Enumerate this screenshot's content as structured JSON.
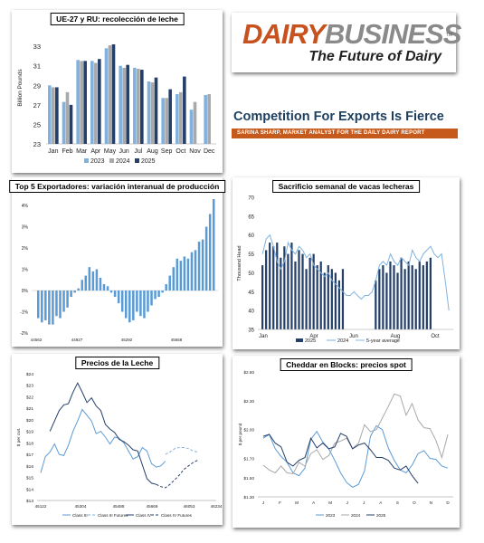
{
  "logo": {
    "part1": "DAIRY",
    "part2": "BUSINESS",
    "tagline": "The Future of Dairy",
    "tm": "TM"
  },
  "headline": {
    "title": "Competition For Exports Is Fierce",
    "subtitle": "SARINA SHARP, MARKET ANALYST FOR THE DAILY DAIRY REPORT"
  },
  "colors": {
    "c2023": "#7fb2df",
    "c2024": "#a9a9a9",
    "c2025": "#243f6a",
    "c5yr": "#7fb2df",
    "cTop5": "#5b9bd5",
    "brand_orange": "#c8521e",
    "brand_gray": "#8a8a8a",
    "headline_blue": "#1d3f5f",
    "bar_orange": "#c55a1c"
  },
  "chart_data": [
    {
      "id": "eu_uk_milk",
      "type": "bar",
      "title": "UE-27 y RU: recolección de leche",
      "ylabel": "Billion Pounds",
      "categories": [
        "Jan",
        "Feb",
        "Mar",
        "Apr",
        "May",
        "Jun",
        "Jul",
        "Aug",
        "Sep",
        "Oct",
        "Nov",
        "Dec"
      ],
      "ylim": [
        23,
        34.5
      ],
      "yticks": [
        "23",
        "25",
        "27",
        "29",
        "31",
        "33"
      ],
      "series": [
        {
          "name": "2023",
          "values": [
            29.0,
            27.3,
            31.6,
            31.5,
            32.8,
            31.0,
            30.8,
            29.4,
            27.7,
            28.1,
            26.5,
            28.0
          ]
        },
        {
          "name": "2024",
          "values": [
            28.8,
            28.3,
            31.5,
            31.3,
            33.1,
            30.8,
            30.7,
            29.3,
            27.7,
            28.3,
            27.3,
            28.1
          ]
        },
        {
          "name": "2025",
          "values": [
            28.8,
            27.0,
            31.5,
            31.7,
            33.2,
            31.1,
            30.6,
            29.8,
            28.6,
            29.9,
            null,
            null
          ]
        }
      ]
    },
    {
      "id": "top5_exporters",
      "type": "bar",
      "title": "Top 5 Exportadores: variación interanual de producción",
      "yticks": [
        "4%",
        "3%",
        "2%",
        "1%",
        "0%",
        "-1%",
        "-2%"
      ],
      "ylim": [
        -2,
        4.3
      ],
      "xticks": [
        "44562",
        "44927",
        "45292",
        "45658"
      ],
      "values": [
        -1.3,
        -1.5,
        -1.4,
        -1.6,
        -1.6,
        -1.2,
        -1.3,
        -1.0,
        -0.8,
        -0.3,
        -0.1,
        0.1,
        0.5,
        0.7,
        1.1,
        0.9,
        1.0,
        0.6,
        0.3,
        0.2,
        -0.1,
        -0.3,
        -0.6,
        -1.0,
        -1.3,
        -1.5,
        -1.4,
        -1.0,
        -1.2,
        -1.3,
        -1.0,
        -0.7,
        -0.4,
        -0.3,
        -0.1,
        0.3,
        0.7,
        1.1,
        1.5,
        1.4,
        1.6,
        1.5,
        1.8,
        1.9,
        2.3,
        2.4,
        3.0,
        3.6,
        4.3
      ]
    },
    {
      "id": "dairy_cow_slaughter",
      "type": "bar",
      "title": "Sacrificio semanal de vacas lecheras",
      "ylabel": "Thousand Head",
      "ylim": [
        35,
        70
      ],
      "yticks": [
        "70",
        "65",
        "60",
        "55",
        "50",
        "45",
        "40",
        "35"
      ],
      "xticks": [
        "Jan",
        "Apr",
        "Jun",
        "Aug",
        "Oct"
      ],
      "series": [
        {
          "name": "2025",
          "type": "bar",
          "values": [
            52,
            56,
            58,
            57,
            58,
            54,
            57,
            55,
            58,
            53,
            56,
            55,
            51,
            54,
            55,
            52,
            53,
            50,
            52,
            51,
            50,
            48,
            51,
            null,
            null,
            null,
            null,
            null,
            null,
            null,
            null,
            48,
            51,
            52,
            50,
            53,
            52,
            50,
            54,
            51,
            53,
            52,
            51,
            53,
            52,
            53,
            54
          ]
        },
        {
          "name": "2024",
          "type": "line",
          "values": [
            55,
            59,
            60,
            57,
            53,
            51,
            53,
            58,
            56,
            55,
            57,
            56,
            54,
            55,
            52,
            51,
            50,
            49,
            50,
            48,
            47,
            46,
            45,
            44,
            44,
            45,
            44,
            43,
            44,
            44,
            45,
            48,
            52,
            53,
            52,
            55,
            53,
            52,
            54,
            53,
            52,
            56,
            54,
            53,
            55,
            56,
            57,
            55,
            54,
            55,
            48,
            40
          ]
        },
        {
          "name": "5-year average",
          "type": "line",
          "values": [
            62,
            60,
            61,
            60,
            59,
            60,
            58,
            57,
            56,
            55,
            54,
            53,
            52,
            51,
            50,
            50,
            49,
            48,
            47,
            46,
            46,
            45,
            45,
            46,
            46,
            47,
            48,
            48,
            49,
            50,
            50,
            51,
            52,
            53,
            54,
            53,
            54,
            55,
            54,
            55,
            54,
            56,
            55,
            54,
            55,
            56,
            55,
            54,
            55,
            56,
            53,
            50
          ]
        }
      ]
    },
    {
      "id": "milk_prices",
      "type": "line",
      "title": "Precios de la Leche",
      "ylabel": "$ per cwt.",
      "ylim": [
        13,
        24
      ],
      "yticks": [
        "$24",
        "$23",
        "$22",
        "$21",
        "$20",
        "$19",
        "$18",
        "$17",
        "$16",
        "$15",
        "$14",
        "$13"
      ],
      "xticks": [
        "45122",
        "45304",
        "45488",
        "45669",
        "46053",
        "46234"
      ],
      "series": [
        {
          "name": "Class III",
          "values": [
            15.4,
            16.8,
            17.2,
            17.9,
            17.0,
            16.9,
            17.8,
            19.0,
            19.9,
            20.9,
            20.4,
            19.9,
            18.8,
            19.0,
            18.5,
            17.9,
            18.5,
            18.4,
            18.0,
            17.3,
            16.6,
            16.8,
            17.6,
            17.3,
            16.2,
            15.9,
            16.0,
            16.4
          ]
        },
        {
          "name": "Class III Futures",
          "values": [
            17.0,
            17.2,
            17.5,
            17.6,
            17.6,
            17.5,
            17.3,
            17.2
          ]
        },
        {
          "name": "Class IV",
          "values": [
            19.0,
            19.9,
            20.8,
            21.3,
            21.4,
            22.4,
            23.2,
            22.4,
            21.5,
            21.9,
            21.2,
            20.8,
            19.6,
            19.2,
            18.9,
            18.3,
            18.1,
            17.8,
            17.4,
            17.3,
            16.1,
            14.9,
            14.5,
            14.4
          ]
        },
        {
          "name": "Class IV Futures",
          "values": [
            14.4,
            14.2,
            14.1,
            14.4,
            14.8,
            15.2,
            15.7,
            16.0,
            16.3,
            16.5
          ]
        }
      ]
    },
    {
      "id": "cheddar_blocks",
      "type": "line",
      "title": "Cheddar en Blocks: precios spot",
      "ylabel": "$ per pound",
      "ylim": [
        1.3,
        2.6
      ],
      "yticks": [
        "$2.60",
        "$2.30",
        "$2.00",
        "$1.70",
        "$1.50",
        "$1.30"
      ],
      "xticks": [
        "J",
        "F",
        "M",
        "A",
        "M",
        "J",
        "J",
        "A",
        "S",
        "O",
        "N",
        "D"
      ],
      "series": [
        {
          "name": "2023",
          "values": [
            1.91,
            1.95,
            1.8,
            1.72,
            1.66,
            1.55,
            1.52,
            1.6,
            1.9,
            1.98,
            1.87,
            1.8,
            1.68,
            1.55,
            1.45,
            1.4,
            1.43,
            1.57,
            1.93,
            2.04,
            2.0,
            1.81,
            1.68,
            1.58,
            1.55,
            1.63,
            1.75,
            1.78,
            1.7,
            1.69,
            1.62,
            1.6
          ]
        },
        {
          "name": "2024",
          "values": [
            1.63,
            1.58,
            1.55,
            1.62,
            1.55,
            1.54,
            1.66,
            1.62,
            1.75,
            1.79,
            1.69,
            1.73,
            1.86,
            1.88,
            1.91,
            1.8,
            1.86,
            2.05,
            1.98,
            2.0,
            2.12,
            2.24,
            2.37,
            2.35,
            2.15,
            2.27,
            2.1,
            2.02,
            2.01,
            1.89,
            1.71,
            1.95
          ]
        },
        {
          "name": "2025",
          "values": [
            1.93,
            1.95,
            1.86,
            1.82,
            1.66,
            1.62,
            1.68,
            1.71,
            1.91,
            1.81,
            1.86,
            1.8,
            1.82,
            1.96,
            1.93,
            1.8,
            1.84,
            1.86,
            1.79,
            1.71,
            1.71,
            1.68,
            1.6,
            1.58,
            1.62,
            1.52,
            1.44
          ]
        }
      ]
    }
  ]
}
